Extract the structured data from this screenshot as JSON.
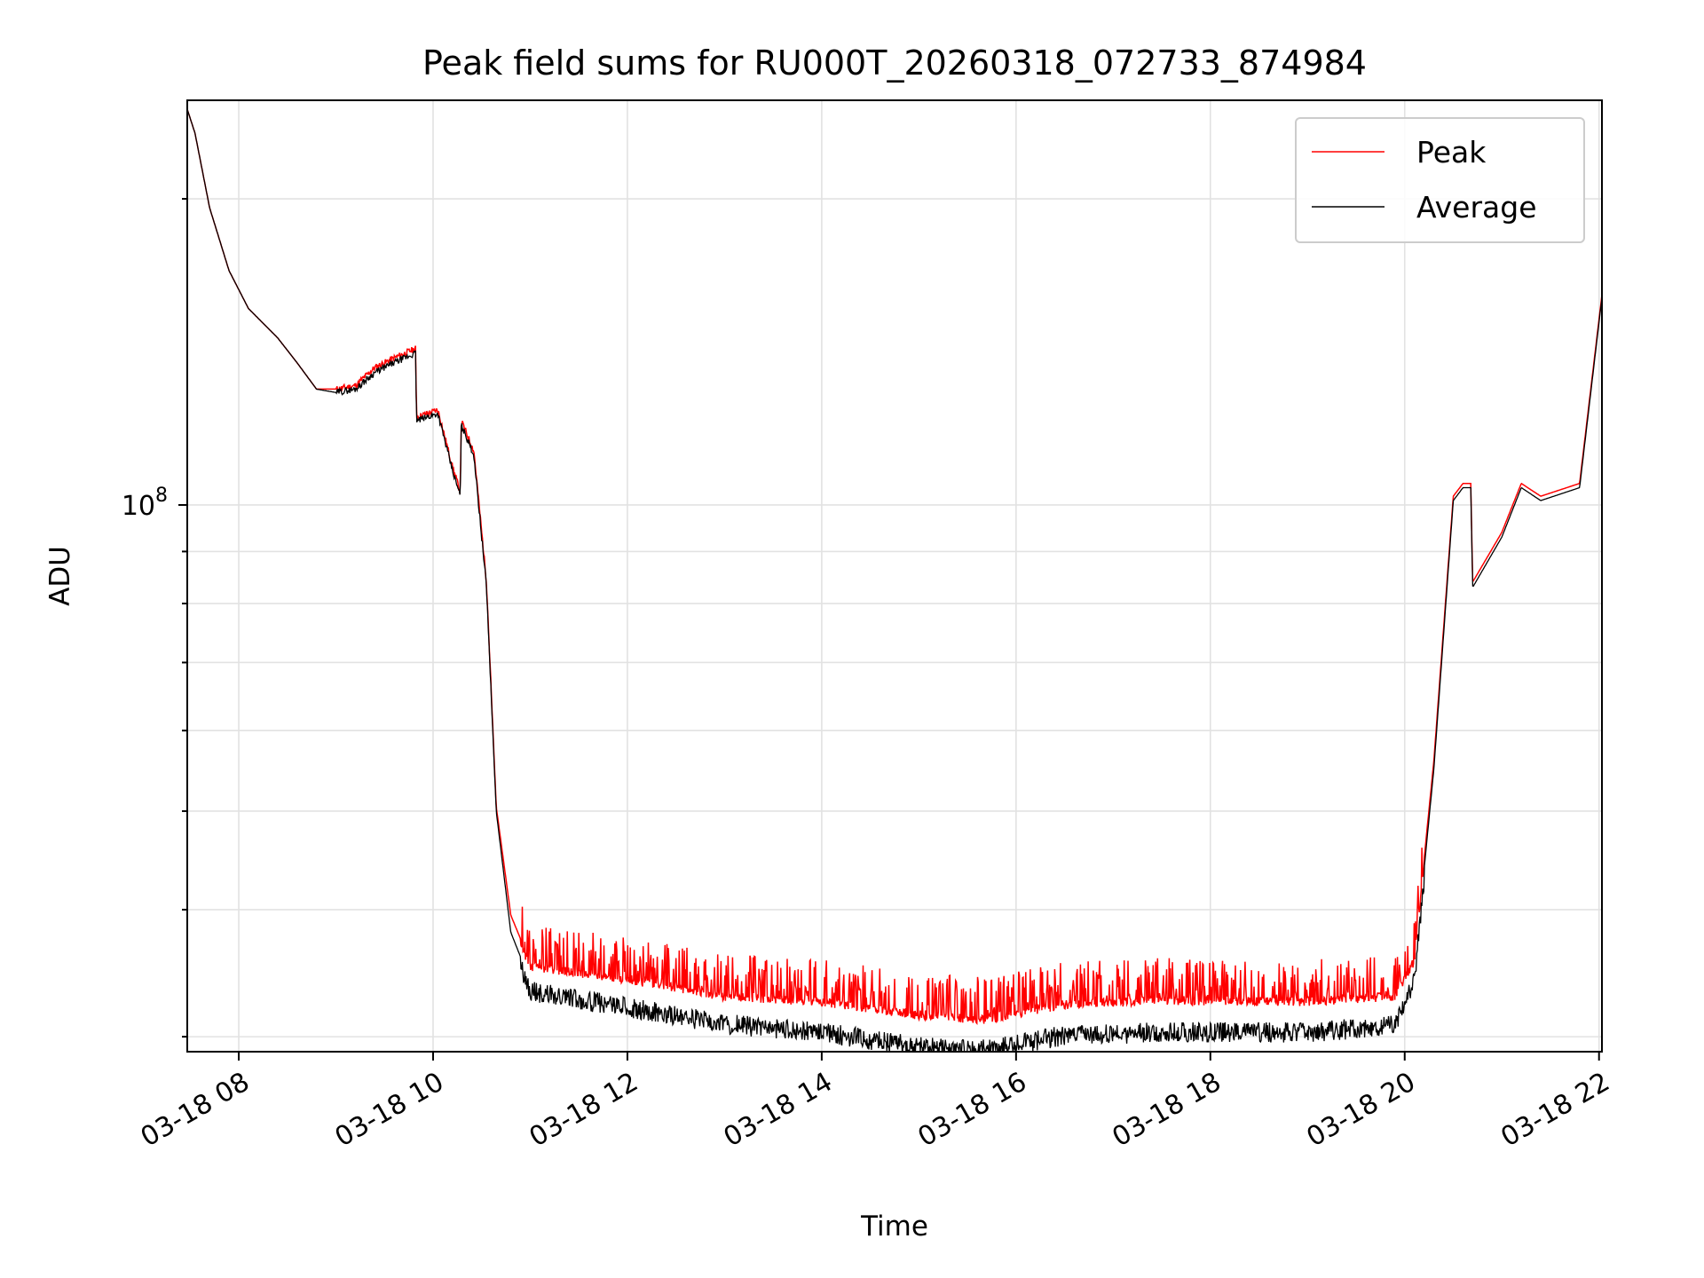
{
  "chart_data": {
    "type": "line",
    "title": "Peak field sums for RU000T_20260318_072733_874984",
    "xlabel": "Time",
    "ylabel": "ADU",
    "yscale": "log",
    "xlim_hours": [
      7.47,
      22.03
    ],
    "ylim": [
      29000000,
      250000000
    ],
    "x_ticks": [
      {
        "hour": 8,
        "label": "03-18 08"
      },
      {
        "hour": 10,
        "label": "03-18 10"
      },
      {
        "hour": 12,
        "label": "03-18 12"
      },
      {
        "hour": 14,
        "label": "03-18 14"
      },
      {
        "hour": 16,
        "label": "03-18 16"
      },
      {
        "hour": 18,
        "label": "03-18 18"
      },
      {
        "hour": 20,
        "label": "03-18 20"
      },
      {
        "hour": 22,
        "label": "03-18 22"
      }
    ],
    "y_major_ticks": [
      {
        "value": 100000000,
        "base": "10",
        "exp": "8"
      }
    ],
    "y_minor_ticks": [
      30000000,
      40000000,
      50000000,
      60000000,
      70000000,
      80000000,
      90000000,
      200000000
    ],
    "legend": {
      "location": "upper right",
      "entries": [
        {
          "name": "Peak",
          "color": "#ff0000"
        },
        {
          "name": "Average",
          "color": "#000000"
        }
      ]
    },
    "grid": true,
    "series": [
      {
        "name": "Average",
        "color": "#000000",
        "points": [
          [
            7.47,
            245000000
          ],
          [
            7.55,
            232000000
          ],
          [
            7.7,
            196000000
          ],
          [
            7.9,
            170000000
          ],
          [
            8.1,
            156000000
          ],
          [
            8.4,
            146000000
          ],
          [
            8.6,
            138000000
          ],
          [
            8.8,
            130000000
          ],
          [
            9.0,
            129000000
          ],
          [
            9.2,
            130000000
          ],
          [
            9.4,
            135000000
          ],
          [
            9.6,
            138000000
          ],
          [
            9.82,
            141000000
          ],
          [
            9.83,
            121000000
          ],
          [
            10.05,
            123000000
          ],
          [
            10.2,
            108000000
          ],
          [
            10.28,
            102000000
          ],
          [
            10.29,
            120000000
          ],
          [
            10.42,
            112000000
          ],
          [
            10.55,
            83000000
          ],
          [
            10.65,
            50000000
          ],
          [
            10.8,
            38000000
          ],
          [
            11.0,
            34000000
          ],
          [
            12.0,
            32800000
          ],
          [
            13.0,
            31600000
          ],
          [
            14.0,
            31000000
          ],
          [
            15.0,
            30000000
          ],
          [
            15.7,
            29800000
          ],
          [
            16.5,
            30800000
          ],
          [
            17.5,
            31000000
          ],
          [
            19.0,
            31000000
          ],
          [
            19.9,
            31500000
          ],
          [
            20.1,
            35000000
          ],
          [
            20.3,
            55000000
          ],
          [
            20.5,
            101000000
          ],
          [
            20.6,
            104000000
          ],
          [
            20.68,
            104000000
          ],
          [
            20.7,
            83000000
          ],
          [
            21.0,
            93000000
          ],
          [
            21.2,
            104000000
          ],
          [
            21.4,
            101000000
          ],
          [
            21.8,
            104000000
          ],
          [
            22.03,
            160000000
          ]
        ]
      },
      {
        "name": "Peak",
        "color": "#ff0000",
        "points": [
          [
            7.47,
            245000000
          ],
          [
            7.55,
            232000000
          ],
          [
            7.7,
            196000000
          ],
          [
            7.9,
            170000000
          ],
          [
            8.1,
            156000000
          ],
          [
            8.4,
            146000000
          ],
          [
            8.6,
            138000000
          ],
          [
            8.8,
            130000000
          ],
          [
            9.0,
            130000000
          ],
          [
            9.2,
            131000000
          ],
          [
            9.4,
            136500000
          ],
          [
            9.6,
            139500000
          ],
          [
            9.82,
            142500000
          ],
          [
            9.83,
            122000000
          ],
          [
            10.05,
            124000000
          ],
          [
            10.2,
            109000000
          ],
          [
            10.28,
            103000000
          ],
          [
            10.29,
            121000000
          ],
          [
            10.42,
            113000000
          ],
          [
            10.55,
            84000000
          ],
          [
            10.65,
            50500000
          ],
          [
            10.8,
            39500000
          ],
          [
            11.0,
            35500000
          ],
          [
            12.0,
            34500000
          ],
          [
            13.0,
            33200000
          ],
          [
            14.0,
            32800000
          ],
          [
            15.0,
            31800000
          ],
          [
            15.7,
            31500000
          ],
          [
            16.5,
            32600000
          ],
          [
            17.5,
            32900000
          ],
          [
            19.0,
            32800000
          ],
          [
            19.9,
            33200000
          ],
          [
            20.1,
            36000000
          ],
          [
            20.3,
            56000000
          ],
          [
            20.5,
            102000000
          ],
          [
            20.6,
            105000000
          ],
          [
            20.68,
            105000000
          ],
          [
            20.7,
            84000000
          ],
          [
            21.0,
            94000000
          ],
          [
            21.2,
            105000000
          ],
          [
            21.4,
            102000000
          ],
          [
            21.8,
            105000000
          ],
          [
            22.03,
            161000000
          ]
        ]
      }
    ]
  }
}
